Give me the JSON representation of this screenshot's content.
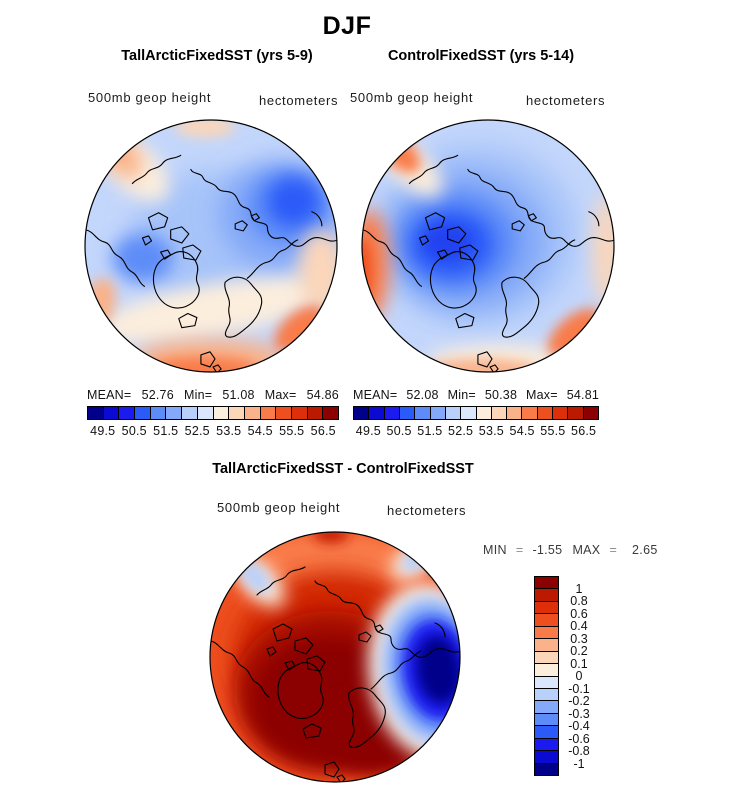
{
  "title": "DJF",
  "labels": {
    "mean": "MEAN=",
    "min": "Min=",
    "max": "Max="
  },
  "labels_diff": {
    "min": "MIN",
    "max": "MAX",
    "eq": "="
  },
  "panels": {
    "left": {
      "title": "TallArcticFixedSST (yrs 5-9)",
      "field": "500mb geop height",
      "units": "hectometers",
      "mean": "52.76",
      "min": "51.08",
      "max": "54.86"
    },
    "right": {
      "title": "ControlFixedSST (yrs 5-14)",
      "field": "500mb geop height",
      "units": "hectometers",
      "mean": "52.08",
      "min": "50.38",
      "max": "54.81"
    },
    "diff": {
      "title": "TallArcticFixedSST - ControlFixedSST",
      "field": "500mb geop height",
      "units": "hectometers",
      "min": "-1.55",
      "max": "2.65"
    }
  },
  "palette16": [
    "#00008b",
    "#0a0ad2",
    "#1b1bf0",
    "#2a5af8",
    "#5d8cf8",
    "#84a9f8",
    "#b9d0fa",
    "#dae7fc",
    "#fceedd",
    "#fbd6b9",
    "#f9b28a",
    "#f97b4a",
    "#ee4f1e",
    "#dd2f0a",
    "#bb1a00",
    "#8b0000"
  ],
  "colorbars": {
    "height_ticks": [
      "49.5",
      "50.5",
      "51.5",
      "52.5",
      "53.5",
      "54.5",
      "55.5",
      "56.5"
    ],
    "diff_ticks": [
      "1",
      "0.8",
      "0.6",
      "0.4",
      "0.3",
      "0.2",
      "0.1",
      "0",
      "-0.1",
      "-0.2",
      "-0.3",
      "-0.4",
      "-0.6",
      "-0.8",
      "-1"
    ]
  },
  "chart_data": [
    {
      "type": "heatmap",
      "subtype": "polar-stereographic contour map (North Pole centered)",
      "season": "DJF",
      "title": "TallArcticFixedSST (yrs 5-9)",
      "variable": "500mb geop height",
      "units": "hectometers",
      "stats": {
        "mean": 52.76,
        "min": 51.08,
        "max": 54.86
      },
      "contour_levels": [
        49.5,
        50,
        50.5,
        51,
        51.5,
        52,
        52.5,
        53,
        53.5,
        54,
        54.5,
        55,
        55.5,
        56,
        56.5
      ],
      "colorbar_tick_labels": [
        49.5,
        50.5,
        51.5,
        52.5,
        53.5,
        54.5,
        55.5,
        56.5
      ],
      "legend_position": "below",
      "palette": "blue-white-red, 16 classes",
      "pattern": "Low heights (blue) over central Arctic, deepest trough on the Siberian side (upper right); higher heights (orange/red) around the mid-latitude rim, strongest at edges"
    },
    {
      "type": "heatmap",
      "subtype": "polar-stereographic contour map (North Pole centered)",
      "season": "DJF",
      "title": "ControlFixedSST (yrs 5-14)",
      "variable": "500mb geop height",
      "units": "hectometers",
      "stats": {
        "mean": 52.08,
        "min": 50.38,
        "max": 54.81
      },
      "contour_levels": [
        49.5,
        50,
        50.5,
        51,
        51.5,
        52,
        52.5,
        53,
        53.5,
        54,
        54.5,
        55,
        55.5,
        56,
        56.5
      ],
      "colorbar_tick_labels": [
        49.5,
        50.5,
        51.5,
        52.5,
        53.5,
        54.5,
        55.5,
        56.5
      ],
      "legend_position": "below",
      "palette": "blue-white-red, 16 classes",
      "pattern": "Deep low (dark blue) covering most of the central/Canadian Arctic; orange/red rim along left, top-left and bottom-right edges"
    },
    {
      "type": "heatmap",
      "subtype": "polar-stereographic difference map (North Pole centered)",
      "season": "DJF",
      "title": "TallArcticFixedSST - ControlFixedSST",
      "variable": "500mb geop height",
      "units": "hectometers",
      "stats": {
        "min": -1.55,
        "max": 2.65
      },
      "contour_levels": [
        -1,
        -0.8,
        -0.6,
        -0.4,
        -0.3,
        -0.2,
        -0.1,
        0,
        0.1,
        0.2,
        0.3,
        0.4,
        0.6,
        0.8,
        1
      ],
      "colorbar_tick_labels": [
        1,
        0.8,
        0.6,
        0.4,
        0.3,
        0.2,
        0.1,
        0,
        -0.1,
        -0.2,
        -0.3,
        -0.4,
        -0.6,
        -0.8,
        -1
      ],
      "legend_position": "right",
      "palette": "blue-white-red, 16 classes",
      "pattern": "Strong positive difference (dark red) over most of the Arctic cap; strong negative cell (dark blue) over northeastern Siberia at right edge; weak negatives at top-left and top-right rims"
    }
  ]
}
